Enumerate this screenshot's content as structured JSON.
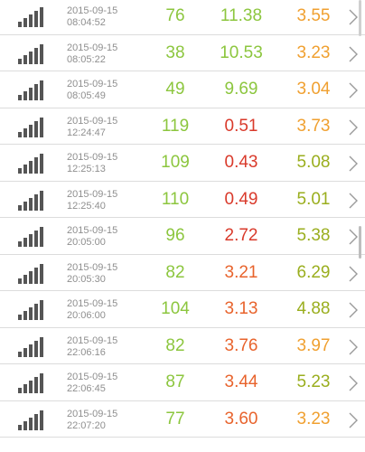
{
  "colors": {
    "green": "#8cc63e",
    "olive": "#9aae1e",
    "orange": "#f0a030",
    "red": "#d93a2b",
    "red_orange": "#e8632c"
  },
  "icons": {
    "signal": "signal-bars-icon",
    "chevron": "chevron-right-icon"
  },
  "rows": [
    {
      "date": "2015-09-15",
      "time": "08:04:52",
      "v1": "76",
      "v2": "11.38",
      "v3": "3.55",
      "c1": "#8cc63e",
      "c2": "#8cc63e",
      "c3": "#f0a030"
    },
    {
      "date": "2015-09-15",
      "time": "08:05:22",
      "v1": "38",
      "v2": "10.53",
      "v3": "3.23",
      "c1": "#8cc63e",
      "c2": "#8cc63e",
      "c3": "#f0a030"
    },
    {
      "date": "2015-09-15",
      "time": "08:05:49",
      "v1": "49",
      "v2": "9.69",
      "v3": "3.04",
      "c1": "#8cc63e",
      "c2": "#8cc63e",
      "c3": "#f0a030"
    },
    {
      "date": "2015-09-15",
      "time": "12:24:47",
      "v1": "119",
      "v2": "0.51",
      "v3": "3.73",
      "c1": "#8cc63e",
      "c2": "#d93a2b",
      "c3": "#f0a030"
    },
    {
      "date": "2015-09-15",
      "time": "12:25:13",
      "v1": "109",
      "v2": "0.43",
      "v3": "5.08",
      "c1": "#8cc63e",
      "c2": "#d93a2b",
      "c3": "#9aae1e"
    },
    {
      "date": "2015-09-15",
      "time": "12:25:40",
      "v1": "110",
      "v2": "0.49",
      "v3": "5.01",
      "c1": "#8cc63e",
      "c2": "#d93a2b",
      "c3": "#9aae1e"
    },
    {
      "date": "2015-09-15",
      "time": "20:05:00",
      "v1": "96",
      "v2": "2.72",
      "v3": "5.38",
      "c1": "#8cc63e",
      "c2": "#d93a2b",
      "c3": "#9aae1e"
    },
    {
      "date": "2015-09-15",
      "time": "20:05:30",
      "v1": "82",
      "v2": "3.21",
      "v3": "6.29",
      "c1": "#8cc63e",
      "c2": "#e8632c",
      "c3": "#9aae1e"
    },
    {
      "date": "2015-09-15",
      "time": "20:06:00",
      "v1": "104",
      "v2": "3.13",
      "v3": "4.88",
      "c1": "#8cc63e",
      "c2": "#e8632c",
      "c3": "#9aae1e"
    },
    {
      "date": "2015-09-15",
      "time": "22:06:16",
      "v1": "82",
      "v2": "3.76",
      "v3": "3.97",
      "c1": "#8cc63e",
      "c2": "#e8632c",
      "c3": "#f0a030"
    },
    {
      "date": "2015-09-15",
      "time": "22:06:45",
      "v1": "87",
      "v2": "3.44",
      "v3": "5.23",
      "c1": "#8cc63e",
      "c2": "#e8632c",
      "c3": "#9aae1e"
    },
    {
      "date": "2015-09-15",
      "time": "22:07:20",
      "v1": "77",
      "v2": "3.60",
      "v3": "3.23",
      "c1": "#8cc63e",
      "c2": "#e8632c",
      "c3": "#f0a030"
    }
  ]
}
